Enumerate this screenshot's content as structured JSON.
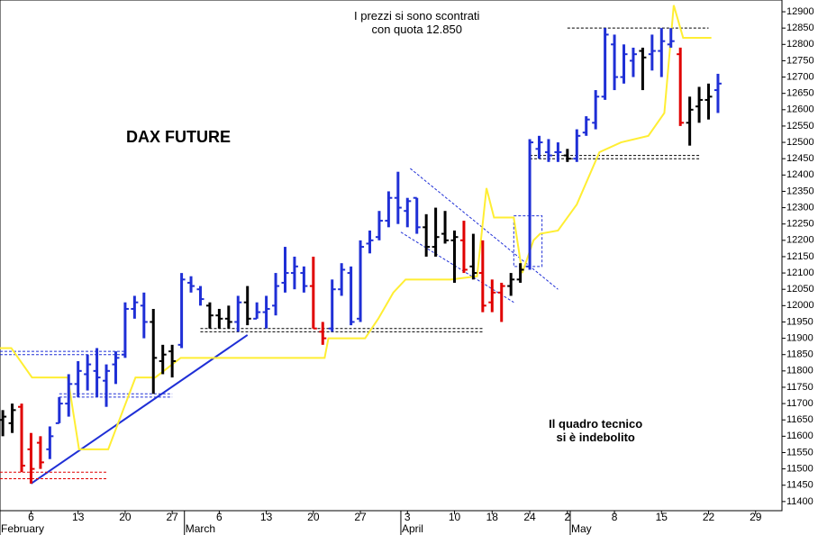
{
  "chart_data": {
    "type": "ohlc",
    "title": "DAX FUTURE",
    "annotations": [
      {
        "lines": [
          "I prezzi si sono scontrati",
          "con quota 12.850"
        ],
        "color": "#000000",
        "x": 44,
        "y": 12885
      },
      {
        "lines": [
          "Il quadro tecnico",
          "si è indebolito"
        ],
        "color": "#e00000",
        "x": 63,
        "y": 11635
      }
    ],
    "xlim": [
      -0.3,
      82.8
    ],
    "ylim": [
      11372,
      12936
    ],
    "yticks": [
      11400,
      11450,
      11500,
      11550,
      11600,
      11650,
      11700,
      11750,
      11800,
      11850,
      11900,
      11950,
      12000,
      12050,
      12100,
      12150,
      12200,
      12250,
      12300,
      12350,
      12400,
      12450,
      12500,
      12550,
      12600,
      12650,
      12700,
      12750,
      12800,
      12850,
      12900
    ],
    "xticks": [
      {
        "value": 3,
        "label": "6"
      },
      {
        "value": 8,
        "label": "13"
      },
      {
        "value": 13,
        "label": "20"
      },
      {
        "value": 18,
        "label": "27"
      },
      {
        "value": 23,
        "label": "6"
      },
      {
        "value": 28,
        "label": "13"
      },
      {
        "value": 33,
        "label": "20"
      },
      {
        "value": 38,
        "label": "27"
      },
      {
        "value": 43,
        "label": "3"
      },
      {
        "value": 48,
        "label": "10"
      },
      {
        "value": 52,
        "label": "18"
      },
      {
        "value": 56,
        "label": "24"
      },
      {
        "value": 60,
        "label": "2"
      },
      {
        "value": 65,
        "label": "8"
      },
      {
        "value": 70,
        "label": "15"
      },
      {
        "value": 75,
        "label": "22"
      },
      {
        "value": 80,
        "label": "29"
      }
    ],
    "months": [
      {
        "value": -0.3,
        "label": "February"
      },
      {
        "value": 19.3,
        "label": "March"
      },
      {
        "value": 42.3,
        "label": "April"
      },
      {
        "value": 60.3,
        "label": "May"
      }
    ],
    "bars": {
      "x": [
        0,
        1,
        2,
        3,
        4,
        5,
        6,
        7,
        8,
        9,
        10,
        11,
        12,
        13,
        14,
        15,
        16,
        17,
        18,
        19,
        20,
        21,
        22,
        23,
        24,
        25,
        26,
        27,
        28,
        29,
        30,
        31,
        32,
        33,
        34,
        35,
        36,
        37,
        38,
        39,
        40,
        41,
        42,
        43,
        44,
        45,
        46,
        47,
        48,
        49,
        50,
        51,
        52,
        53,
        54,
        55,
        56,
        57,
        58,
        59,
        60,
        61,
        62,
        63,
        64,
        65,
        66,
        67,
        68,
        69,
        70,
        71,
        72,
        73,
        74,
        75,
        76
      ],
      "open": [
        11650,
        11640,
        11690,
        11560,
        11580,
        11560,
        11640,
        11700,
        11760,
        11790,
        11800,
        11770,
        11820,
        11850,
        11990,
        12000,
        11950,
        11830,
        11860,
        11880,
        12070,
        12050,
        12000,
        11970,
        11960,
        11950,
        12010,
        11960,
        11980,
        12000,
        12070,
        12100,
        12100,
        12060,
        11920,
        11930,
        12050,
        12100,
        11960,
        12190,
        12210,
        12260,
        12330,
        12290,
        12330,
        12240,
        12180,
        12220,
        12200,
        12200,
        12120,
        12100,
        12010,
        12040,
        12060,
        12080,
        12120,
        12480,
        12470,
        12470,
        12460,
        12450,
        12530,
        12560,
        12640,
        12800,
        12700,
        12750,
        12780,
        12770,
        12780,
        12800,
        12770,
        12560,
        12610,
        12630,
        12660
      ],
      "high": [
        11680,
        11700,
        11700,
        11610,
        11600,
        11630,
        11720,
        11790,
        11830,
        11850,
        11870,
        11820,
        11860,
        12010,
        12030,
        12040,
        11990,
        11880,
        11880,
        12100,
        12090,
        12060,
        12010,
        11990,
        12000,
        12030,
        12060,
        12010,
        12030,
        12100,
        12180,
        12150,
        12120,
        12150,
        11950,
        12080,
        12130,
        12120,
        12200,
        12230,
        12290,
        12350,
        12410,
        12330,
        12330,
        12280,
        12300,
        12290,
        12230,
        12260,
        12220,
        12200,
        12080,
        12070,
        12100,
        12130,
        12510,
        12520,
        12510,
        12500,
        12480,
        12540,
        12580,
        12660,
        12850,
        12830,
        12800,
        12790,
        12790,
        12830,
        12850,
        12850,
        12790,
        12640,
        12670,
        12680,
        12710
      ],
      "low": [
        11600,
        11610,
        11490,
        11455,
        11500,
        11530,
        11640,
        11660,
        11720,
        11740,
        11720,
        11690,
        11760,
        11840,
        11960,
        11900,
        11730,
        11790,
        11780,
        11870,
        12040,
        12000,
        11930,
        11930,
        11930,
        11920,
        11940,
        11960,
        11930,
        11970,
        12040,
        12050,
        12040,
        11930,
        11880,
        11920,
        12030,
        11940,
        11950,
        12160,
        12200,
        12240,
        12250,
        12240,
        12220,
        12150,
        12150,
        12190,
        12070,
        12100,
        12080,
        11980,
        11980,
        11950,
        12030,
        12070,
        12110,
        12450,
        12440,
        12440,
        12440,
        12440,
        12520,
        12540,
        12630,
        12660,
        12680,
        12700,
        12660,
        12720,
        12700,
        12790,
        12550,
        12490,
        12560,
        12570,
        12590
      ],
      "close": [
        11660,
        11680,
        11510,
        11500,
        11520,
        11600,
        11700,
        11760,
        11800,
        11820,
        11780,
        11800,
        11840,
        11990,
        12010,
        11950,
        11840,
        11850,
        11830,
        12080,
        12060,
        12020,
        11970,
        11960,
        11950,
        12010,
        11960,
        11980,
        11990,
        12060,
        12100,
        12120,
        12060,
        11930,
        11900,
        12050,
        12110,
        11950,
        12180,
        12200,
        12260,
        12330,
        12300,
        12320,
        12240,
        12180,
        12210,
        12200,
        12210,
        12110,
        12100,
        12000,
        12040,
        12060,
        12080,
        12110,
        12500,
        12500,
        12460,
        12470,
        12450,
        12520,
        12570,
        12640,
        12830,
        12700,
        12770,
        12770,
        12760,
        12780,
        12810,
        12810,
        12560,
        12600,
        12630,
        12640,
        12680
      ],
      "colors": [
        "#000000",
        "#000000",
        "#e00000",
        "#e00000",
        "#e00000",
        "#1f2fd6",
        "#1f2fd6",
        "#1f2fd6",
        "#1f2fd6",
        "#1f2fd6",
        "#1f2fd6",
        "#1f2fd6",
        "#1f2fd6",
        "#1f2fd6",
        "#1f2fd6",
        "#1f2fd6",
        "#000000",
        "#000000",
        "#000000",
        "#1f2fd6",
        "#1f2fd6",
        "#1f2fd6",
        "#000000",
        "#000000",
        "#000000",
        "#1f2fd6",
        "#000000",
        "#1f2fd6",
        "#1f2fd6",
        "#1f2fd6",
        "#1f2fd6",
        "#1f2fd6",
        "#1f2fd6",
        "#e00000",
        "#e00000",
        "#1f2fd6",
        "#1f2fd6",
        "#1f2fd6",
        "#1f2fd6",
        "#1f2fd6",
        "#1f2fd6",
        "#1f2fd6",
        "#1f2fd6",
        "#1f2fd6",
        "#1f2fd6",
        "#000000",
        "#000000",
        "#000000",
        "#000000",
        "#e00000",
        "#000000",
        "#e00000",
        "#e00000",
        "#e00000",
        "#000000",
        "#000000",
        "#1f2fd6",
        "#1f2fd6",
        "#1f2fd6",
        "#1f2fd6",
        "#000000",
        "#1f2fd6",
        "#1f2fd6",
        "#1f2fd6",
        "#1f2fd6",
        "#1f2fd6",
        "#1f2fd6",
        "#1f2fd6",
        "#000000",
        "#1f2fd6",
        "#1f2fd6",
        "#1f2fd6",
        "#e00000",
        "#000000",
        "#000000",
        "#000000",
        "#1f2fd6"
      ]
    },
    "indicator": {
      "color": "#ffee33",
      "x": [
        -0.3,
        0.9,
        3.1,
        6.9,
        8.1,
        11.2,
        14.1,
        16.2,
        18.9,
        34.2,
        34.6,
        38.5,
        39.9,
        41.5,
        42.8,
        47.6,
        50.4,
        51.4,
        52.2,
        54.3,
        55.2,
        56.4,
        57.1,
        59,
        61,
        63.4,
        65.7,
        68.6,
        70.3,
        71.3,
        72.3,
        75.3
      ],
      "values": [
        11870,
        11870,
        11780,
        11780,
        11560,
        11560,
        11780,
        11780,
        11840,
        11840,
        11900,
        11900,
        11960,
        12040,
        12080,
        12080,
        12090,
        12360,
        12270,
        12270,
        12100,
        12200,
        12220,
        12230,
        12310,
        12470,
        12500,
        12520,
        12590,
        12920,
        12820,
        12820
      ]
    },
    "overlays": [
      {
        "style": "solid",
        "color": "#1f2fd6",
        "x": [
          3,
          26
        ],
        "y": [
          11455,
          11910
        ]
      },
      {
        "style": "dashed",
        "color": "#1f2fd6",
        "x": [
          -0.3,
          13
        ],
        "y": [
          11860,
          11860
        ]
      },
      {
        "style": "dashed",
        "color": "#1f2fd6",
        "x": [
          -0.3,
          13
        ],
        "y": [
          11850,
          11850
        ]
      },
      {
        "style": "dashed",
        "color": "#1f2fd6",
        "x": [
          6,
          18
        ],
        "y": [
          11730,
          11730
        ]
      },
      {
        "style": "dashed",
        "color": "#1f2fd6",
        "x": [
          6,
          18
        ],
        "y": [
          11720,
          11720
        ]
      },
      {
        "style": "dashed",
        "color": "#e00000",
        "x": [
          -0.3,
          11
        ],
        "y": [
          11490,
          11490
        ]
      },
      {
        "style": "dashed",
        "color": "#e00000",
        "x": [
          -0.3,
          11
        ],
        "y": [
          11470,
          11470
        ]
      },
      {
        "style": "dashed",
        "color": "#000000",
        "x": [
          21,
          51
        ],
        "y": [
          11930,
          11930
        ]
      },
      {
        "style": "dashed",
        "color": "#000000",
        "x": [
          21,
          51
        ],
        "y": [
          11920,
          11920
        ]
      },
      {
        "style": "dashed",
        "color": "#000000",
        "x": [
          60,
          75
        ],
        "y": [
          12850,
          12850
        ]
      },
      {
        "style": "dashed",
        "color": "#000000",
        "x": [
          56,
          74
        ],
        "y": [
          12460,
          12460
        ]
      },
      {
        "style": "dashed",
        "color": "#000000",
        "x": [
          56,
          74
        ],
        "y": [
          12450,
          12450
        ]
      },
      {
        "style": "dashed",
        "color": "#1f2fd6",
        "x": [
          43.3,
          59
        ],
        "y": [
          12420,
          12050
        ]
      },
      {
        "style": "dashed",
        "color": "#1f2fd6",
        "x": [
          42.3,
          54.3
        ],
        "y": [
          12225,
          12010
        ]
      },
      {
        "style": "dashed",
        "color": "#1f2fd6",
        "x": [
          54.3,
          57.3,
          57.3,
          54.3,
          54.3
        ],
        "y": [
          12275,
          12275,
          12120,
          12120,
          12275
        ]
      }
    ]
  }
}
